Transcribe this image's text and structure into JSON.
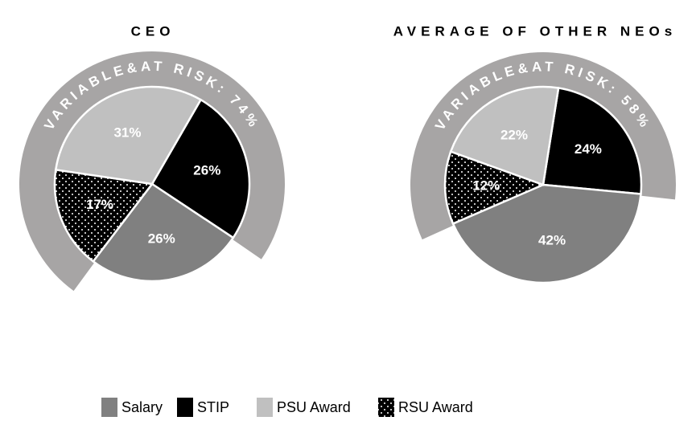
{
  "chart_data": [
    {
      "type": "pie",
      "title": "CEO",
      "ring_label": "VARIABLE&AT RISK: 74%",
      "categories": [
        "Salary",
        "STIP",
        "PSU Award",
        "RSU Award"
      ],
      "values": [
        26,
        26,
        31,
        17
      ],
      "value_labels": [
        "26%",
        "26%",
        "31%",
        "17%"
      ],
      "colors": [
        "#808080",
        "#000000",
        "#c0c0c0",
        "#000000"
      ],
      "patterns": [
        null,
        null,
        null,
        "dots"
      ],
      "draw_order": [
        1,
        0,
        3,
        2
      ],
      "start_angle": 30
    },
    {
      "type": "pie",
      "title": "AVERAGE OF OTHER NEOs",
      "ring_label": "VARIABLE&AT RISK: 58%",
      "categories": [
        "Salary",
        "STIP",
        "PSU Award",
        "RSU Award"
      ],
      "values": [
        42,
        24,
        22,
        12
      ],
      "value_labels": [
        "42%",
        "24%",
        "22%",
        "12%"
      ],
      "colors": [
        "#808080",
        "#000000",
        "#c0c0c0",
        "#000000"
      ],
      "patterns": [
        null,
        null,
        null,
        "dots"
      ],
      "draw_order": [
        1,
        0,
        3,
        2
      ],
      "start_angle": 9
    }
  ]
}
